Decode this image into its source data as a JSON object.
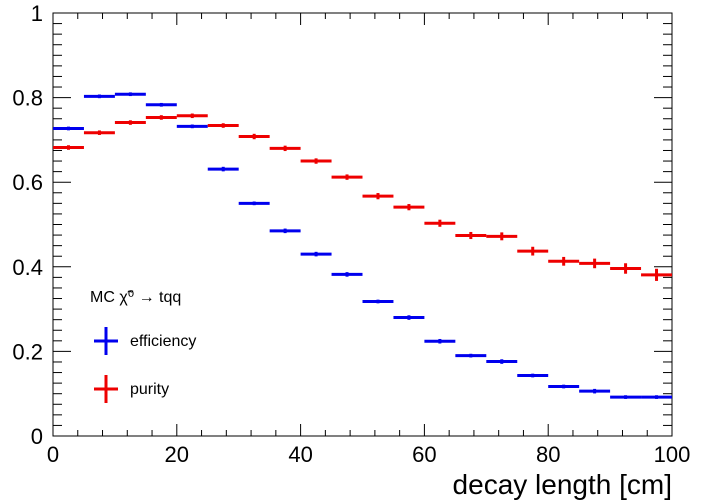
{
  "chart_data": {
    "type": "scatter",
    "title": "",
    "xlabel": "decay length [cm]",
    "ylabel": "",
    "xlim": [
      0,
      100
    ],
    "ylim": [
      0,
      1
    ],
    "x_ticks": [
      "0",
      "20",
      "40",
      "60",
      "80",
      "100"
    ],
    "y_ticks": [
      "0",
      "0.2",
      "0.4",
      "0.6",
      "0.8",
      "1"
    ],
    "bin_width": 5,
    "x": [
      2.5,
      7.5,
      12.5,
      17.5,
      22.5,
      27.5,
      32.5,
      37.5,
      42.5,
      47.5,
      52.5,
      57.5,
      62.5,
      67.5,
      72.5,
      77.5,
      82.5,
      87.5,
      92.5,
      97.5
    ],
    "legend_header": "MC χ̃⁰ → tqq",
    "legend_placement": "lower-left",
    "series": [
      {
        "name": "efficiency",
        "color": "#0000ee",
        "values": [
          0.727,
          0.803,
          0.808,
          0.783,
          0.732,
          0.631,
          0.55,
          0.485,
          0.43,
          0.382,
          0.318,
          0.28,
          0.224,
          0.19,
          0.176,
          0.143,
          0.117,
          0.106,
          0.092,
          0.092
        ],
        "errors": [
          0.002,
          0.002,
          0.002,
          0.002,
          0.002,
          0.003,
          0.002,
          0.003,
          0.003,
          0.003,
          0.002,
          0.003,
          0.003,
          0.002,
          0.003,
          0.002,
          0.002,
          0.003,
          0.002,
          0.002
        ]
      },
      {
        "name": "purity",
        "color": "#ee0000",
        "values": [
          0.682,
          0.717,
          0.741,
          0.753,
          0.757,
          0.734,
          0.708,
          0.68,
          0.65,
          0.612,
          0.567,
          0.541,
          0.503,
          0.474,
          0.472,
          0.437,
          0.413,
          0.408,
          0.396,
          0.381
        ],
        "errors": [
          0.003,
          0.003,
          0.003,
          0.003,
          0.003,
          0.003,
          0.004,
          0.004,
          0.004,
          0.004,
          0.005,
          0.005,
          0.006,
          0.006,
          0.007,
          0.008,
          0.008,
          0.009,
          0.01,
          0.012
        ]
      }
    ]
  }
}
